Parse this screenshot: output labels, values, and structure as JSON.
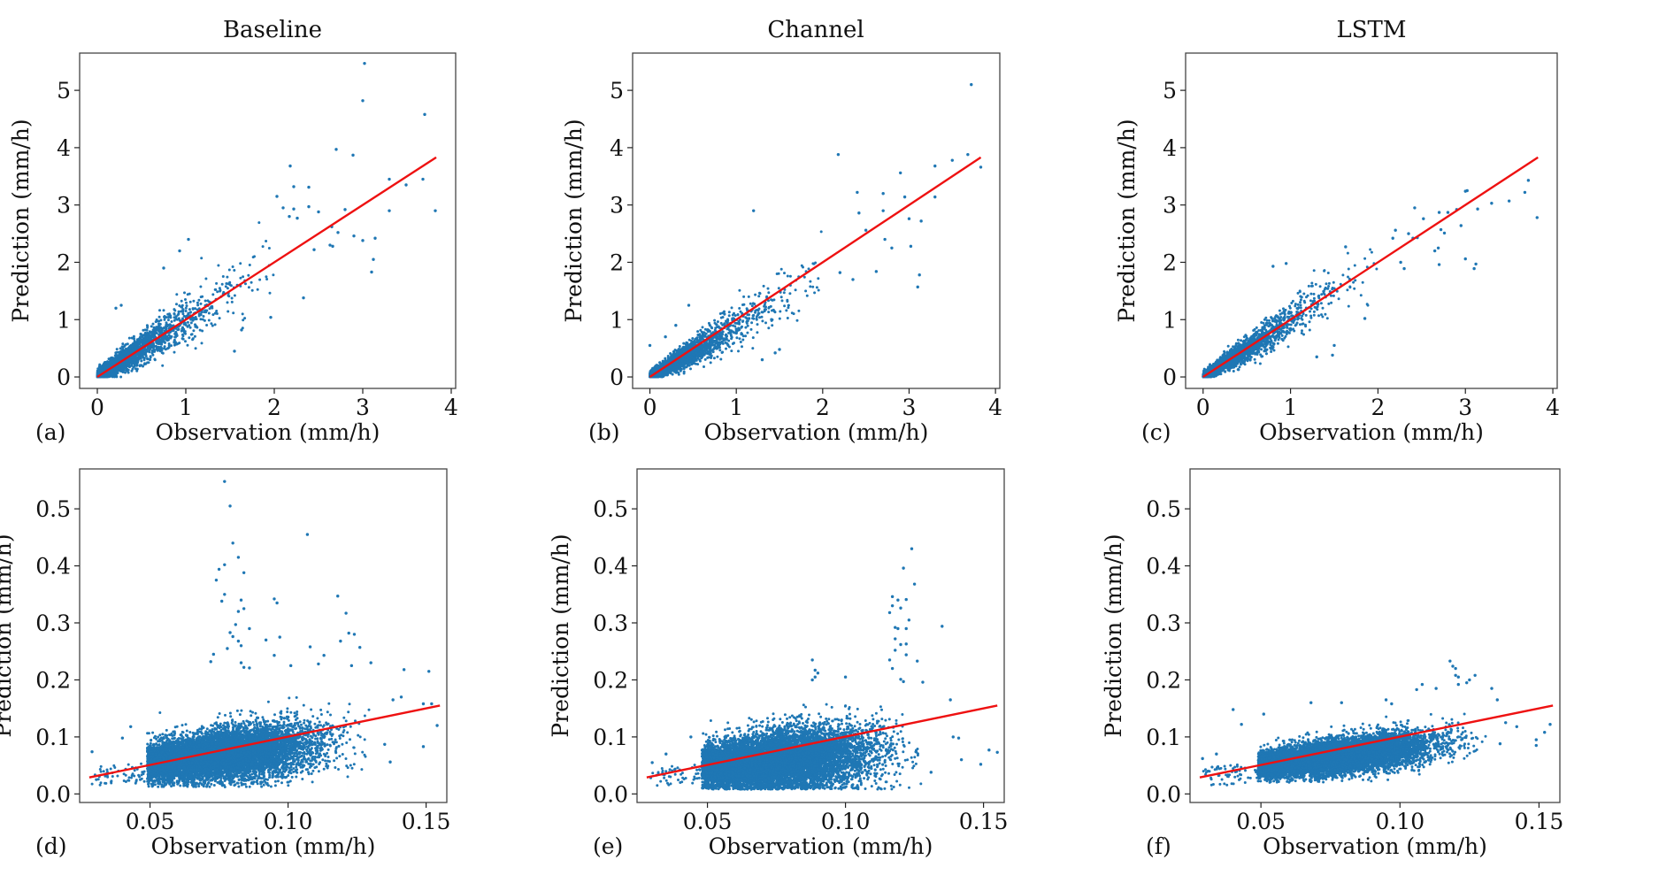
{
  "figure": {
    "column_titles": [
      "Baseline",
      "Channel",
      "LSTM"
    ],
    "panel_labels": [
      "(a)",
      "(b)",
      "(c)",
      "(d)",
      "(e)",
      "(f)"
    ],
    "xlabel": "Observation (mm/h)",
    "ylabel": "Prediction (mm/h)",
    "point_color": "#1f77b4",
    "line_color": "#ee1111"
  },
  "chart_data": [
    {
      "type": "scatter",
      "panel": "(a)",
      "title": "Baseline",
      "xlabel": "Observation (mm/h)",
      "ylabel": "Prediction (mm/h)",
      "xlim": [
        -0.2,
        4.05
      ],
      "ylim": [
        -0.2,
        5.65
      ],
      "xticks": [
        0,
        1,
        2,
        3,
        4
      ],
      "xtick_labels": [
        "0",
        "1",
        "2",
        "3",
        "4"
      ],
      "yticks": [
        0,
        1,
        2,
        3,
        4,
        5
      ],
      "ytick_labels": [
        "0",
        "1",
        "2",
        "3",
        "4",
        "5"
      ],
      "fit_line": {
        "x": [
          0,
          3.83
        ],
        "y": [
          0,
          3.83
        ]
      },
      "core": {
        "n": 2600,
        "xmax": 2.0,
        "decay": 2.6,
        "spread": 0.32,
        "bias": 0.0,
        "floor": 0.0,
        "seed": 11
      },
      "outliers": [
        [
          3.02,
          5.47
        ],
        [
          3.0,
          4.82
        ],
        [
          3.7,
          4.58
        ],
        [
          2.7,
          3.97
        ],
        [
          2.89,
          3.87
        ],
        [
          2.18,
          3.68
        ],
        [
          2.22,
          3.32
        ],
        [
          2.39,
          3.31
        ],
        [
          3.3,
          3.45
        ],
        [
          3.49,
          3.35
        ],
        [
          3.68,
          3.45
        ],
        [
          3.82,
          2.9
        ],
        [
          3.3,
          2.9
        ],
        [
          2.03,
          3.15
        ],
        [
          2.1,
          2.95
        ],
        [
          2.22,
          2.93
        ],
        [
          2.39,
          2.97
        ],
        [
          2.5,
          2.88
        ],
        [
          2.8,
          2.92
        ],
        [
          2.17,
          2.8
        ],
        [
          2.26,
          2.77
        ],
        [
          2.72,
          2.52
        ],
        [
          2.65,
          2.62
        ],
        [
          2.9,
          2.46
        ],
        [
          3.0,
          2.38
        ],
        [
          3.14,
          2.42
        ],
        [
          3.12,
          2.05
        ],
        [
          3.1,
          1.83
        ],
        [
          2.33,
          1.38
        ],
        [
          2.63,
          2.3
        ],
        [
          2.66,
          2.28
        ],
        [
          2.45,
          2.22
        ],
        [
          0.93,
          2.2
        ],
        [
          1.03,
          2.4
        ],
        [
          0.75,
          1.9
        ],
        [
          1.63,
          0.82
        ],
        [
          1.55,
          0.45
        ],
        [
          1.96,
          1.04
        ],
        [
          0.27,
          1.25
        ],
        [
          0.21,
          1.2
        ]
      ]
    },
    {
      "type": "scatter",
      "panel": "(b)",
      "title": "Channel",
      "xlabel": "Observation (mm/h)",
      "ylabel": "Prediction (mm/h)",
      "xlim": [
        -0.2,
        4.05
      ],
      "ylim": [
        -0.2,
        5.65
      ],
      "xticks": [
        0,
        1,
        2,
        3,
        4
      ],
      "xtick_labels": [
        "0",
        "1",
        "2",
        "3",
        "4"
      ],
      "yticks": [
        0,
        1,
        2,
        3,
        4,
        5
      ],
      "ytick_labels": [
        "0",
        "1",
        "2",
        "3",
        "4",
        "5"
      ],
      "fit_line": {
        "x": [
          0,
          3.83
        ],
        "y": [
          0,
          3.83
        ]
      },
      "core": {
        "n": 2600,
        "xmax": 2.0,
        "decay": 2.6,
        "spread": 0.26,
        "bias": -0.12,
        "floor": 0.0,
        "seed": 23
      },
      "outliers": [
        [
          3.72,
          5.1
        ],
        [
          2.18,
          3.88
        ],
        [
          3.68,
          3.88
        ],
        [
          3.83,
          3.66
        ],
        [
          3.3,
          3.68
        ],
        [
          3.5,
          3.78
        ],
        [
          2.9,
          3.56
        ],
        [
          2.4,
          3.22
        ],
        [
          2.7,
          3.2
        ],
        [
          2.95,
          3.14
        ],
        [
          3.3,
          3.14
        ],
        [
          1.2,
          2.9
        ],
        [
          2.42,
          2.86
        ],
        [
          2.7,
          2.9
        ],
        [
          3.0,
          2.76
        ],
        [
          3.14,
          2.72
        ],
        [
          2.5,
          2.56
        ],
        [
          2.72,
          2.4
        ],
        [
          2.8,
          2.25
        ],
        [
          3.02,
          2.28
        ],
        [
          3.12,
          1.78
        ],
        [
          3.1,
          1.57
        ],
        [
          2.62,
          1.84
        ],
        [
          2.2,
          1.82
        ],
        [
          2.35,
          1.7
        ],
        [
          0.0,
          0.55
        ],
        [
          0.18,
          0.7
        ],
        [
          0.3,
          0.9
        ],
        [
          0.45,
          1.25
        ],
        [
          1.5,
          0.48
        ],
        [
          1.45,
          0.42
        ],
        [
          1.3,
          0.3
        ]
      ]
    },
    {
      "type": "scatter",
      "panel": "(c)",
      "title": "LSTM",
      "xlabel": "Observation (mm/h)",
      "ylabel": "Prediction (mm/h)",
      "xlim": [
        -0.2,
        4.05
      ],
      "ylim": [
        -0.2,
        5.65
      ],
      "xticks": [
        0,
        1,
        2,
        3,
        4
      ],
      "xtick_labels": [
        "0",
        "1",
        "2",
        "3",
        "4"
      ],
      "yticks": [
        0,
        1,
        2,
        3,
        4,
        5
      ],
      "ytick_labels": [
        "0",
        "1",
        "2",
        "3",
        "4",
        "5"
      ],
      "fit_line": {
        "x": [
          0,
          3.83
        ],
        "y": [
          0,
          3.83
        ]
      },
      "core": {
        "n": 2600,
        "xmax": 2.0,
        "decay": 2.6,
        "spread": 0.24,
        "bias": -0.02,
        "floor": 0.0,
        "seed": 37
      },
      "outliers": [
        [
          3.72,
          3.43
        ],
        [
          3.68,
          3.22
        ],
        [
          3.5,
          3.07
        ],
        [
          3.3,
          3.03
        ],
        [
          3.02,
          3.25
        ],
        [
          3.0,
          3.24
        ],
        [
          3.14,
          2.93
        ],
        [
          3.82,
          2.78
        ],
        [
          2.42,
          2.95
        ],
        [
          2.52,
          2.76
        ],
        [
          2.7,
          2.87
        ],
        [
          2.8,
          2.87
        ],
        [
          2.9,
          2.92
        ],
        [
          2.95,
          2.64
        ],
        [
          2.72,
          2.57
        ],
        [
          2.76,
          2.51
        ],
        [
          2.35,
          2.5
        ],
        [
          2.4,
          2.42
        ],
        [
          2.45,
          2.43
        ],
        [
          2.2,
          2.56
        ],
        [
          2.17,
          2.42
        ],
        [
          2.26,
          2.0
        ],
        [
          2.3,
          1.89
        ],
        [
          2.65,
          2.2
        ],
        [
          2.69,
          2.25
        ],
        [
          2.7,
          1.96
        ],
        [
          3.0,
          2.06
        ],
        [
          3.1,
          1.89
        ],
        [
          3.12,
          1.97
        ],
        [
          1.63,
          2.27
        ],
        [
          0.95,
          1.98
        ],
        [
          0.8,
          1.93
        ],
        [
          1.85,
          1.02
        ],
        [
          1.48,
          0.38
        ],
        [
          1.3,
          0.35
        ],
        [
          1.5,
          0.55
        ]
      ]
    },
    {
      "type": "scatter",
      "panel": "(d)",
      "title": "Baseline",
      "xlabel": "Observation (mm/h)",
      "ylabel": "Prediction (mm/h)",
      "xlim": [
        0.0245,
        0.1575
      ],
      "ylim": [
        -0.015,
        0.57
      ],
      "xticks": [
        0.05,
        0.1,
        0.15
      ],
      "xtick_labels": [
        "0.05",
        "0.10",
        "0.15"
      ],
      "yticks": [
        0.0,
        0.1,
        0.2,
        0.3,
        0.4,
        0.5
      ],
      "ytick_labels": [
        "0.0",
        "0.1",
        "0.2",
        "0.3",
        "0.4",
        "0.5"
      ],
      "fit_line": {
        "x": [
          0.028,
          0.155
        ],
        "y": [
          0.029,
          0.155
        ]
      },
      "core": {
        "n": 9000,
        "xmin": 0.049,
        "xmax": 0.13,
        "center": 0.075,
        "xsd": 0.017,
        "slope": 0.55,
        "yc": 0.068,
        "ysd": 0.022,
        "yfloor": 0.012,
        "seed": 53
      },
      "outliers": [
        [
          0.077,
          0.548
        ],
        [
          0.079,
          0.505
        ],
        [
          0.107,
          0.455
        ],
        [
          0.08,
          0.44
        ],
        [
          0.082,
          0.415
        ],
        [
          0.077,
          0.402
        ],
        [
          0.084,
          0.388
        ],
        [
          0.075,
          0.394
        ],
        [
          0.074,
          0.375
        ],
        [
          0.077,
          0.35
        ],
        [
          0.076,
          0.338
        ],
        [
          0.083,
          0.34
        ],
        [
          0.084,
          0.325
        ],
        [
          0.082,
          0.32
        ],
        [
          0.095,
          0.342
        ],
        [
          0.096,
          0.335
        ],
        [
          0.118,
          0.347
        ],
        [
          0.121,
          0.317
        ],
        [
          0.081,
          0.297
        ],
        [
          0.086,
          0.29
        ],
        [
          0.079,
          0.283
        ],
        [
          0.08,
          0.276
        ],
        [
          0.082,
          0.268
        ],
        [
          0.097,
          0.275
        ],
        [
          0.092,
          0.27
        ],
        [
          0.119,
          0.268
        ],
        [
          0.122,
          0.282
        ],
        [
          0.124,
          0.28
        ],
        [
          0.108,
          0.258
        ],
        [
          0.126,
          0.257
        ],
        [
          0.073,
          0.245
        ],
        [
          0.078,
          0.255
        ],
        [
          0.083,
          0.26
        ],
        [
          0.095,
          0.243
        ],
        [
          0.113,
          0.243
        ],
        [
          0.072,
          0.232
        ],
        [
          0.083,
          0.23
        ],
        [
          0.084,
          0.222
        ],
        [
          0.086,
          0.221
        ],
        [
          0.101,
          0.225
        ],
        [
          0.111,
          0.228
        ],
        [
          0.123,
          0.225
        ],
        [
          0.13,
          0.23
        ],
        [
          0.142,
          0.218
        ],
        [
          0.151,
          0.215
        ],
        [
          0.029,
          0.074
        ],
        [
          0.04,
          0.098
        ],
        [
          0.043,
          0.118
        ],
        [
          0.154,
          0.12
        ],
        [
          0.149,
          0.083
        ],
        [
          0.137,
          0.056
        ],
        [
          0.135,
          0.087
        ],
        [
          0.138,
          0.165
        ],
        [
          0.141,
          0.17
        ],
        [
          0.149,
          0.158
        ],
        [
          0.152,
          0.158
        ]
      ]
    },
    {
      "type": "scatter",
      "panel": "(e)",
      "title": "Channel",
      "xlabel": "Observation (mm/h)",
      "ylabel": "Prediction (mm/h)",
      "xlim": [
        0.0245,
        0.1575
      ],
      "ylim": [
        -0.015,
        0.57
      ],
      "xticks": [
        0.05,
        0.1,
        0.15
      ],
      "xtick_labels": [
        "0.05",
        "0.10",
        "0.15"
      ],
      "yticks": [
        0.0,
        0.1,
        0.2,
        0.3,
        0.4,
        0.5
      ],
      "ytick_labels": [
        "0.0",
        "0.1",
        "0.2",
        "0.3",
        "0.4",
        "0.5"
      ],
      "fit_line": {
        "x": [
          0.028,
          0.155
        ],
        "y": [
          0.029,
          0.155
        ]
      },
      "core": {
        "n": 9000,
        "xmin": 0.048,
        "xmax": 0.128,
        "center": 0.075,
        "xsd": 0.017,
        "slope": 0.45,
        "yc": 0.058,
        "ysd": 0.026,
        "yfloor": 0.008,
        "seed": 71
      },
      "outliers": [
        [
          0.124,
          0.43
        ],
        [
          0.121,
          0.396
        ],
        [
          0.125,
          0.368
        ],
        [
          0.117,
          0.346
        ],
        [
          0.119,
          0.34
        ],
        [
          0.122,
          0.341
        ],
        [
          0.117,
          0.33
        ],
        [
          0.12,
          0.326
        ],
        [
          0.116,
          0.318
        ],
        [
          0.123,
          0.305
        ],
        [
          0.135,
          0.294
        ],
        [
          0.118,
          0.292
        ],
        [
          0.119,
          0.29
        ],
        [
          0.122,
          0.29
        ],
        [
          0.118,
          0.272
        ],
        [
          0.12,
          0.262
        ],
        [
          0.122,
          0.263
        ],
        [
          0.118,
          0.252
        ],
        [
          0.122,
          0.244
        ],
        [
          0.116,
          0.235
        ],
        [
          0.126,
          0.233
        ],
        [
          0.088,
          0.235
        ],
        [
          0.089,
          0.217
        ],
        [
          0.09,
          0.212
        ],
        [
          0.088,
          0.2
        ],
        [
          0.089,
          0.205
        ],
        [
          0.1,
          0.205
        ],
        [
          0.117,
          0.22
        ],
        [
          0.12,
          0.201
        ],
        [
          0.121,
          0.197
        ],
        [
          0.128,
          0.196
        ],
        [
          0.138,
          0.165
        ],
        [
          0.155,
          0.073
        ],
        [
          0.152,
          0.077
        ],
        [
          0.149,
          0.052
        ],
        [
          0.142,
          0.06
        ],
        [
          0.141,
          0.098
        ],
        [
          0.139,
          0.1
        ],
        [
          0.131,
          0.038
        ],
        [
          0.035,
          0.07
        ],
        [
          0.03,
          0.055
        ],
        [
          0.044,
          0.1
        ]
      ]
    },
    {
      "type": "scatter",
      "panel": "(f)",
      "title": "LSTM",
      "xlabel": "Observation (mm/h)",
      "ylabel": "Prediction (mm/h)",
      "xlim": [
        0.0245,
        0.1575
      ],
      "ylim": [
        -0.015,
        0.57
      ],
      "xticks": [
        0.05,
        0.1,
        0.15
      ],
      "xtick_labels": [
        "0.05",
        "0.10",
        "0.15"
      ],
      "yticks": [
        0.0,
        0.1,
        0.2,
        0.3,
        0.4,
        0.5
      ],
      "ytick_labels": [
        "0.0",
        "0.1",
        "0.2",
        "0.3",
        "0.4",
        "0.5"
      ],
      "fit_line": {
        "x": [
          0.028,
          0.155
        ],
        "y": [
          0.029,
          0.155
        ]
      },
      "core": {
        "n": 9000,
        "xmin": 0.049,
        "xmax": 0.131,
        "center": 0.076,
        "xsd": 0.017,
        "slope": 0.62,
        "yc": 0.065,
        "ysd": 0.015,
        "yfloor": 0.02,
        "seed": 89
      },
      "outliers": [
        [
          0.118,
          0.233
        ],
        [
          0.119,
          0.224
        ],
        [
          0.12,
          0.22
        ],
        [
          0.12,
          0.208
        ],
        [
          0.121,
          0.205
        ],
        [
          0.127,
          0.208
        ],
        [
          0.125,
          0.2
        ],
        [
          0.124,
          0.195
        ],
        [
          0.121,
          0.192
        ],
        [
          0.133,
          0.185
        ],
        [
          0.113,
          0.185
        ],
        [
          0.106,
          0.183
        ],
        [
          0.108,
          0.192
        ],
        [
          0.097,
          0.158
        ],
        [
          0.095,
          0.165
        ],
        [
          0.068,
          0.16
        ],
        [
          0.079,
          0.16
        ],
        [
          0.04,
          0.148
        ],
        [
          0.051,
          0.14
        ],
        [
          0.043,
          0.122
        ],
        [
          0.135,
          0.165
        ],
        [
          0.138,
          0.125
        ],
        [
          0.142,
          0.118
        ],
        [
          0.149,
          0.095
        ],
        [
          0.149,
          0.085
        ],
        [
          0.152,
          0.108
        ],
        [
          0.154,
          0.122
        ],
        [
          0.136,
          0.088
        ],
        [
          0.029,
          0.062
        ],
        [
          0.031,
          0.04
        ],
        [
          0.034,
          0.07
        ]
      ]
    }
  ]
}
